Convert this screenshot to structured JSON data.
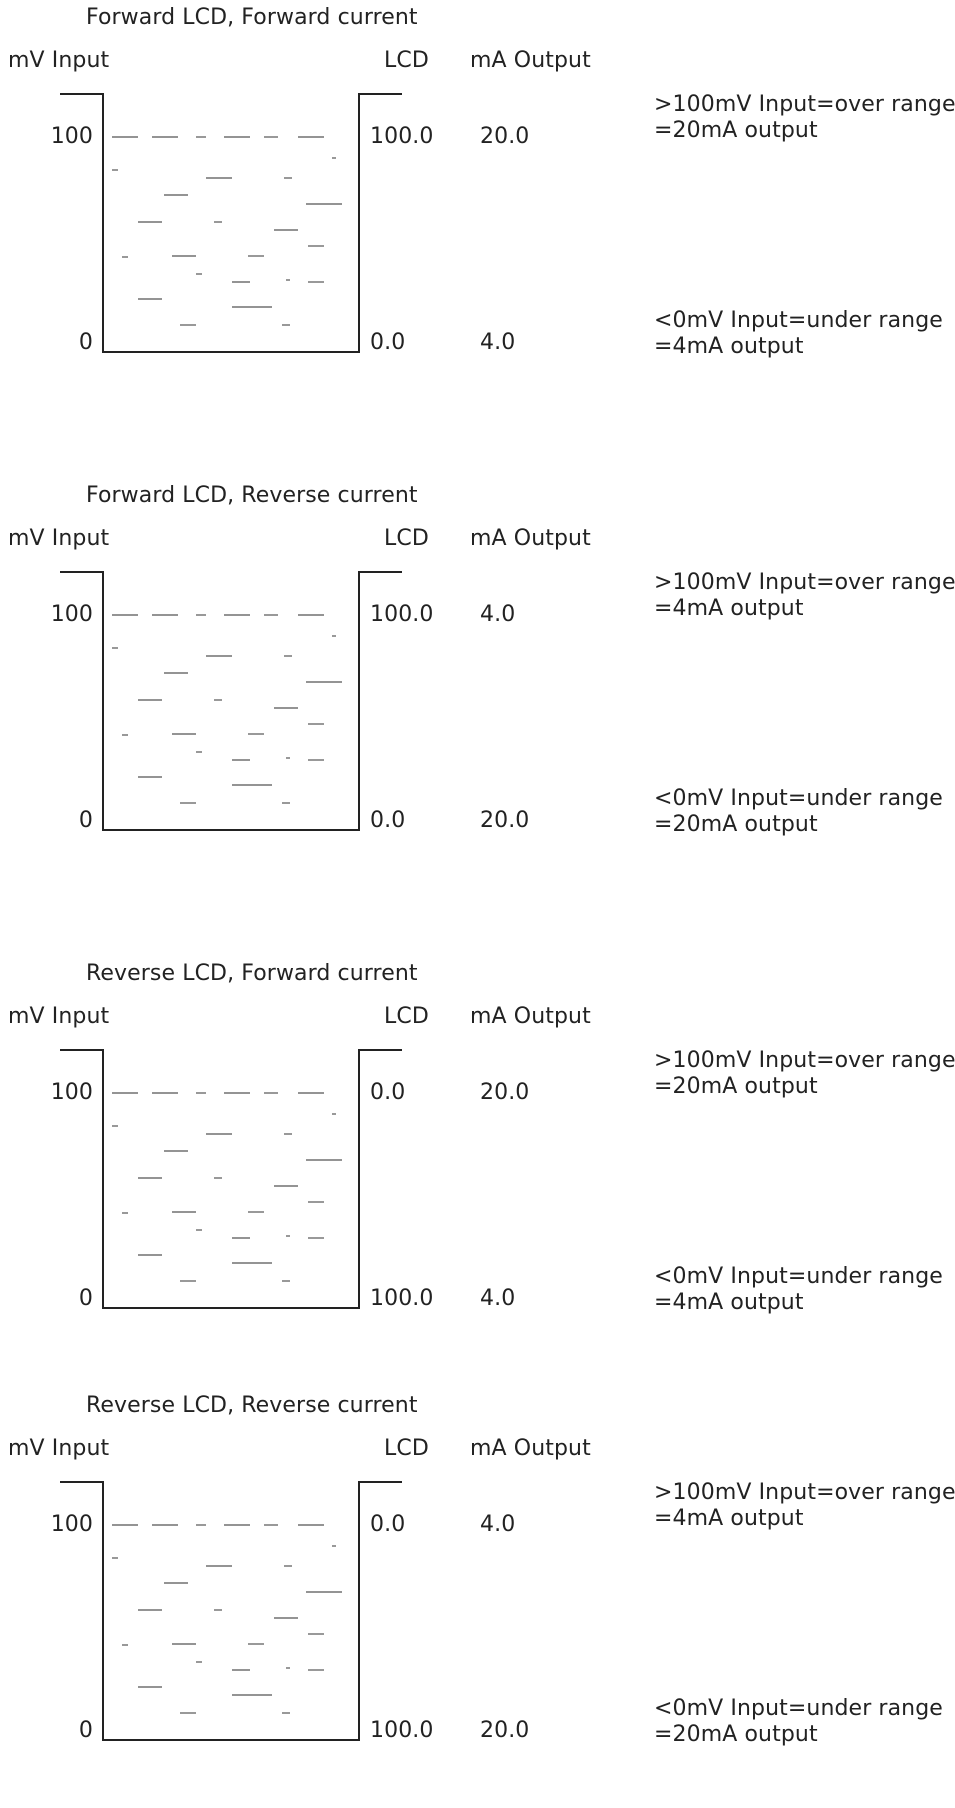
{
  "diagram": {
    "panels": [
      {
        "title": "Forward LCD, Forward current",
        "mv_label": "mV Input",
        "lcd_label": "LCD",
        "ma_label": "mA Output",
        "mv_high": "100",
        "mv_low": "0",
        "lcd_high": "100.0",
        "lcd_low": "0.0",
        "ma_high": "20.0",
        "ma_low": "4.0",
        "over_note": [
          ">100mV Input=over range",
          "=20mA output"
        ],
        "under_note": [
          "<0mV Input=under range",
          "=4mA output"
        ]
      },
      {
        "title": "Forward LCD, Reverse current",
        "mv_label": "mV Input",
        "lcd_label": "LCD",
        "ma_label": "mA Output",
        "mv_high": "100",
        "mv_low": "0",
        "lcd_high": "100.0",
        "lcd_low": "0.0",
        "ma_high": "4.0",
        "ma_low": "20.0",
        "over_note": [
          ">100mV Input=over range",
          "=4mA output"
        ],
        "under_note": [
          "<0mV Input=under range",
          "=20mA output"
        ]
      },
      {
        "title": "Reverse LCD, Forward current",
        "mv_label": "mV Input",
        "lcd_label": "LCD",
        "ma_label": "mA Output",
        "mv_high": "100",
        "mv_low": "0",
        "lcd_high": "0.0",
        "lcd_low": "100.0",
        "ma_high": "20.0",
        "ma_low": "4.0",
        "over_note": [
          ">100mV Input=over range",
          "=20mA output"
        ],
        "under_note": [
          "<0mV Input=under range",
          "=4mA output"
        ]
      },
      {
        "title": "Reverse LCD, Reverse current",
        "mv_label": "mV Input",
        "lcd_label": "LCD",
        "ma_label": "mA Output",
        "mv_high": "100",
        "mv_low": "0",
        "lcd_high": "0.0",
        "lcd_low": "100.0",
        "ma_high": "4.0",
        "ma_low": "20.0",
        "over_note": [
          ">100mV Input=over range",
          "=4mA output"
        ],
        "under_note": [
          "<0mV Input=under range",
          "=20mA output"
        ]
      }
    ],
    "colors": {
      "ink": "#222222",
      "dash": "#555555",
      "background": "#ffffff"
    }
  }
}
